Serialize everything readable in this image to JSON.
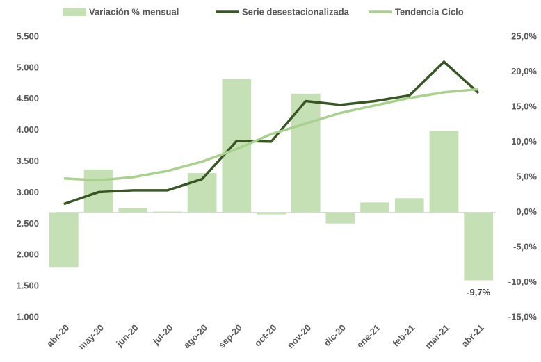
{
  "chart_data": {
    "type": "bar-line",
    "categories": [
      "abr-20",
      "may-20",
      "jun-20",
      "jul-20",
      "ago-20",
      "sep-20",
      "oct-20",
      "nov-20",
      "dic-20",
      "ene-21",
      "feb-21",
      "mar-21",
      "abr-21"
    ],
    "series": [
      {
        "name": "Variación % mensual",
        "type": "bar",
        "axis": "y2",
        "color": "#c5e0b4",
        "values": [
          -7.8,
          6.1,
          0.6,
          0.1,
          5.6,
          19.0,
          -0.3,
          16.9,
          -1.6,
          1.4,
          2.0,
          11.6,
          -9.7
        ],
        "value_labels": [
          null,
          null,
          null,
          null,
          null,
          null,
          null,
          null,
          null,
          null,
          null,
          null,
          "-9,7%"
        ]
      },
      {
        "name": "Serie desestacionalizada",
        "type": "line",
        "axis": "y",
        "color": "#375623",
        "values": [
          2820,
          3010,
          3040,
          3040,
          3220,
          3830,
          3820,
          4470,
          4410,
          4470,
          4560,
          5100,
          4600
        ]
      },
      {
        "name": "Tendencia Ciclo",
        "type": "line",
        "axis": "y",
        "color": "#a9d18e",
        "values": [
          3230,
          3200,
          3250,
          3350,
          3500,
          3700,
          3940,
          4110,
          4280,
          4400,
          4520,
          4610,
          4660
        ]
      }
    ],
    "ylim": [
      1000,
      5500
    ],
    "yticks": [
      {
        "value": 1000,
        "label": "1.000"
      },
      {
        "value": 1500,
        "label": "1.500"
      },
      {
        "value": 2000,
        "label": "2.000"
      },
      {
        "value": 2500,
        "label": "2.500"
      },
      {
        "value": 3000,
        "label": "3.000"
      },
      {
        "value": 3500,
        "label": "3.500"
      },
      {
        "value": 4000,
        "label": "4.000"
      },
      {
        "value": 4500,
        "label": "4.500"
      },
      {
        "value": 5000,
        "label": "5.000"
      },
      {
        "value": 5500,
        "label": "5.500"
      }
    ],
    "y2lim": [
      -15,
      25
    ],
    "y2ticks": [
      {
        "value": -15,
        "label": "-15,0%"
      },
      {
        "value": -10,
        "label": "-10,0%"
      },
      {
        "value": -5,
        "label": "-5,0%"
      },
      {
        "value": 0,
        "label": "0,0%"
      },
      {
        "value": 5,
        "label": "5,0%"
      },
      {
        "value": 10,
        "label": "10,0%"
      },
      {
        "value": 15,
        "label": "15,0%"
      },
      {
        "value": 20,
        "label": "20,0%"
      },
      {
        "value": 25,
        "label": "25,0%"
      }
    ],
    "legend": "top",
    "grid": false
  }
}
